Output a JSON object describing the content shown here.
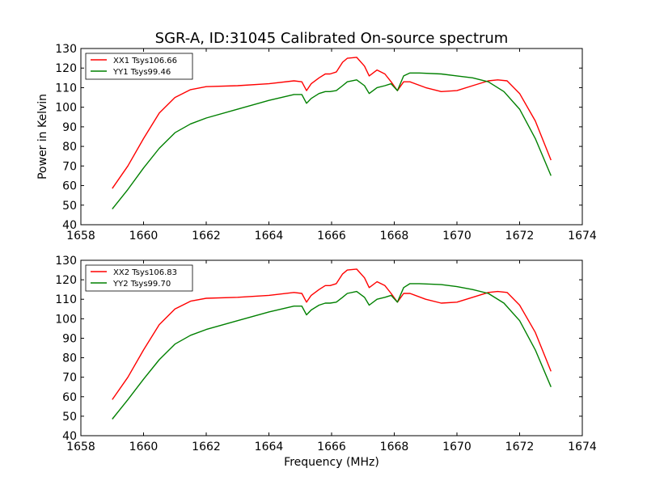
{
  "chart_data": {
    "type": "line",
    "title": "SGR-A, ID:31045 Calibrated On-source spectrum",
    "xlabel": "Frequency (MHz)",
    "xlim": [
      1658,
      1674
    ],
    "ylim": [
      40,
      130
    ],
    "colors": {
      "red": "#ff0000",
      "green": "#008000"
    },
    "panels": [
      {
        "ylabel": "Power in Kelvin",
        "x_ticks": [
          "1658",
          "1660",
          "1662",
          "1664",
          "1666",
          "1668",
          "1670",
          "1672",
          "1674"
        ],
        "y_ticks": [
          "40",
          "50",
          "60",
          "70",
          "80",
          "90",
          "100",
          "110",
          "120",
          "130"
        ],
        "legend_position": "top-left",
        "series": [
          {
            "name": "XX1 Tsys106.66",
            "color": "#ff0000",
            "x": [
              1659.0,
              1659.5,
              1660.0,
              1660.5,
              1661.0,
              1661.5,
              1662.0,
              1663.0,
              1664.0,
              1664.8,
              1665.05,
              1665.2,
              1665.35,
              1665.6,
              1665.8,
              1665.95,
              1666.15,
              1666.35,
              1666.5,
              1666.8,
              1667.05,
              1667.2,
              1667.45,
              1667.7,
              1667.9,
              1668.1,
              1668.3,
              1668.5,
              1669.0,
              1669.5,
              1670.0,
              1670.5,
              1671.0,
              1671.3,
              1671.6,
              1672.0,
              1672.5,
              1673.0
            ],
            "y": [
              58.5,
              70,
              84,
              97,
              105,
              109,
              110.5,
              111,
              112,
              113.5,
              113,
              108.5,
              112,
              115,
              117,
              117,
              118,
              123,
              125,
              125.5,
              121,
              116,
              119,
              117,
              113,
              108.5,
              113,
              113,
              110,
              108,
              108.5,
              111,
              113.5,
              114,
              113.5,
              107,
              93,
              73
            ]
          },
          {
            "name": "YY1 Tsys99.46",
            "color": "#008000",
            "x": [
              1659.0,
              1659.5,
              1660.0,
              1660.5,
              1661.0,
              1661.5,
              1662.0,
              1663.0,
              1664.0,
              1664.8,
              1665.05,
              1665.2,
              1665.35,
              1665.6,
              1665.8,
              1665.95,
              1666.15,
              1666.35,
              1666.5,
              1666.8,
              1667.05,
              1667.2,
              1667.45,
              1667.7,
              1667.9,
              1668.1,
              1668.3,
              1668.5,
              1668.8,
              1669.5,
              1670.0,
              1670.5,
              1671.0,
              1671.5,
              1672.0,
              1672.5,
              1673.0
            ],
            "y": [
              48,
              58,
              69,
              79,
              87,
              91.5,
              94.5,
              99,
              103.5,
              106.5,
              106.5,
              102,
              104.5,
              107,
              108,
              108,
              108.5,
              111,
              113,
              114,
              111,
              107,
              110,
              111,
              112,
              108.5,
              116,
              117.5,
              117.5,
              117,
              116,
              115,
              113,
              108,
              99,
              84,
              65
            ]
          }
        ]
      },
      {
        "ylabel": "",
        "x_ticks": [
          "1658",
          "1660",
          "1662",
          "1664",
          "1666",
          "1668",
          "1670",
          "1672",
          "1674"
        ],
        "y_ticks": [
          "40",
          "50",
          "60",
          "70",
          "80",
          "90",
          "100",
          "110",
          "120",
          "130"
        ],
        "legend_position": "top-left",
        "series": [
          {
            "name": "XX2 Tsys106.83",
            "color": "#ff0000",
            "x": [
              1659.0,
              1659.5,
              1660.0,
              1660.5,
              1661.0,
              1661.5,
              1662.0,
              1663.0,
              1664.0,
              1664.8,
              1665.05,
              1665.2,
              1665.35,
              1665.6,
              1665.8,
              1665.95,
              1666.15,
              1666.35,
              1666.5,
              1666.8,
              1667.05,
              1667.2,
              1667.45,
              1667.7,
              1667.9,
              1668.1,
              1668.3,
              1668.5,
              1669.0,
              1669.5,
              1670.0,
              1670.5,
              1671.0,
              1671.3,
              1671.6,
              1672.0,
              1672.5,
              1673.0
            ],
            "y": [
              58.5,
              70,
              84,
              97,
              105,
              109,
              110.5,
              111,
              112,
              113.5,
              113,
              108.5,
              112,
              115,
              117,
              117,
              118,
              123,
              125,
              125.5,
              121,
              116,
              119,
              117,
              113,
              108.5,
              113,
              113,
              110,
              108,
              108.5,
              111,
              113.5,
              114,
              113.5,
              107,
              93,
              73
            ]
          },
          {
            "name": "YY2 Tsys99.70",
            "color": "#008000",
            "x": [
              1659.0,
              1659.5,
              1660.0,
              1660.5,
              1661.0,
              1661.5,
              1662.0,
              1663.0,
              1664.0,
              1664.8,
              1665.05,
              1665.2,
              1665.35,
              1665.6,
              1665.8,
              1665.95,
              1666.15,
              1666.35,
              1666.5,
              1666.8,
              1667.05,
              1667.2,
              1667.45,
              1667.7,
              1667.9,
              1668.1,
              1668.3,
              1668.5,
              1668.8,
              1669.5,
              1670.0,
              1670.5,
              1671.0,
              1671.5,
              1672.0,
              1672.5,
              1673.0
            ],
            "y": [
              48.5,
              58.5,
              69,
              79,
              87,
              91.5,
              94.5,
              99,
              103.5,
              106.5,
              106.5,
              102,
              104.5,
              107,
              108,
              108,
              108.5,
              111,
              113,
              114,
              111,
              107,
              110,
              111,
              112,
              108.5,
              116,
              118,
              118,
              117.5,
              116.5,
              115,
              113,
              108,
              99,
              84,
              65
            ]
          }
        ]
      }
    ]
  }
}
